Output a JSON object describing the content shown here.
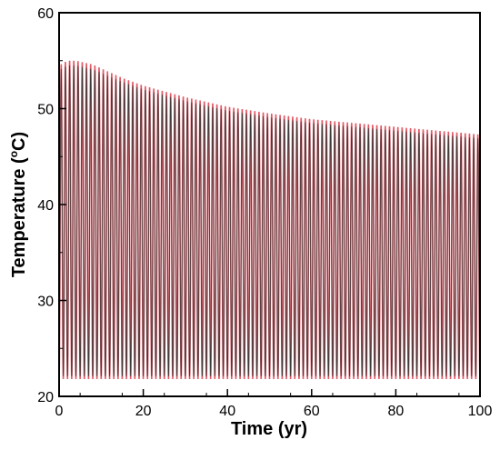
{
  "chart_data": {
    "type": "line",
    "title": "",
    "xlabel": "Time (yr)",
    "ylabel": {
      "prefix": "Temperature (",
      "superscript": "o",
      "suffix": "C)"
    },
    "xlim": [
      0,
      100
    ],
    "ylim": [
      20,
      60
    ],
    "xticks": [
      "0",
      "20",
      "40",
      "60",
      "80",
      "100"
    ],
    "yticks": [
      "20",
      "30",
      "40",
      "50",
      "60"
    ],
    "grid": false,
    "legend": "none",
    "cycles": 100,
    "series": [
      {
        "color": "#e05a66",
        "description_values": "oscillating seasonal temperature, one cycle per year",
        "min": 21.8,
        "envelope_max": {
          "x": [
            0,
            2,
            4,
            6,
            8,
            10,
            15,
            20,
            25,
            30,
            40,
            50,
            60,
            70,
            80,
            90,
            100
          ],
          "y": [
            54.5,
            55.0,
            55.0,
            54.8,
            54.6,
            54.2,
            53.2,
            52.4,
            51.8,
            51.2,
            50.2,
            49.5,
            48.9,
            48.5,
            48.1,
            47.7,
            47.3
          ]
        }
      },
      {
        "color": "#3a3a3a",
        "description_values": "inner envelope of the cycles",
        "envelope_max": {
          "x": [
            0,
            2,
            4,
            6,
            8,
            10,
            15,
            20,
            25,
            30,
            40,
            50,
            60,
            70,
            80,
            90,
            100
          ],
          "y": [
            54.0,
            54.5,
            54.5,
            54.3,
            54.1,
            53.7,
            52.8,
            52.0,
            51.4,
            50.8,
            49.8,
            49.1,
            48.5,
            48.1,
            47.7,
            47.3,
            46.9
          ]
        }
      }
    ]
  }
}
